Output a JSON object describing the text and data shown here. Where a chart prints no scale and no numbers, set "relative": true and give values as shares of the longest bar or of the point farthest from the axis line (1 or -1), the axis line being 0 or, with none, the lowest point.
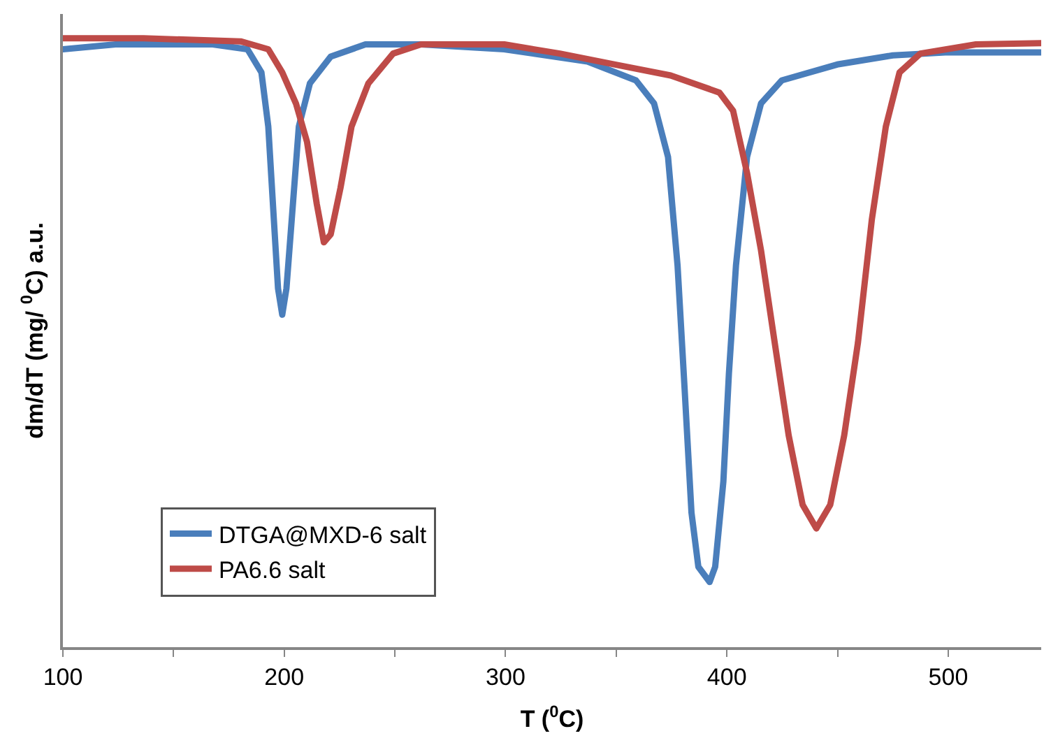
{
  "chart_data": {
    "type": "line",
    "relative": true,
    "xlabel": "T ($^{0}$C)",
    "ylabel": "dm/dT (mg/ $^{0}$C) a.u.",
    "xlim": [
      100,
      542
    ],
    "xticks": [
      100,
      {
        "value": 150,
        "label": null
      },
      200,
      {
        "value": 250,
        "label": null
      },
      300,
      {
        "value": 350,
        "label": null
      },
      400,
      {
        "value": 450,
        "label": null
      },
      500
    ],
    "legend": "bottom left",
    "series": [
      {
        "name": "DTGA@MXD-6 salt",
        "color": "#4a7ebb",
        "x": [
          100,
          123.8,
          167.7,
          183.4,
          189.7,
          192.8,
          195.3,
          197.2,
          199.1,
          201.0,
          203.4,
          206.6,
          211.6,
          221.0,
          236.7,
          261.8,
          299.4,
          337.0,
          358.9,
          367.1,
          373.4,
          377.7,
          380.9,
          384.0,
          387.1,
          392.2,
          394.7,
          398.4,
          400.9,
          404.1,
          409.1,
          415.4,
          424.8,
          449.8,
          474.9,
          500,
          542
        ],
        "values": [
          0.982,
          0.99,
          0.99,
          0.982,
          0.944,
          0.855,
          0.703,
          0.589,
          0.546,
          0.589,
          0.703,
          0.855,
          0.926,
          0.97,
          0.99,
          0.99,
          0.982,
          0.962,
          0.931,
          0.893,
          0.805,
          0.627,
          0.424,
          0.221,
          0.132,
          0.107,
          0.132,
          0.272,
          0.449,
          0.627,
          0.805,
          0.893,
          0.931,
          0.957,
          0.972,
          0.977,
          0.977
        ]
      },
      {
        "name": "PA6.6 salt",
        "color": "#be4b48",
        "x": [
          100,
          136.4,
          180.3,
          192.8,
          199.1,
          205.3,
          210.3,
          214.7,
          217.9,
          221.0,
          225.4,
          230.4,
          238.0,
          249.2,
          261.8,
          299.4,
          324.5,
          349.5,
          374.6,
          396.6,
          402.8,
          409.1,
          415.4,
          421.6,
          427.9,
          434.2,
          440.4,
          446.7,
          453.0,
          459.2,
          465.5,
          471.8,
          478.0,
          487.4,
          512.5,
          542
        ],
        "values": [
          1.0,
          1.0,
          0.995,
          0.982,
          0.944,
          0.893,
          0.83,
          0.728,
          0.665,
          0.678,
          0.754,
          0.855,
          0.926,
          0.975,
          0.99,
          0.99,
          0.975,
          0.957,
          0.939,
          0.911,
          0.881,
          0.779,
          0.652,
          0.5,
          0.348,
          0.234,
          0.195,
          0.234,
          0.348,
          0.5,
          0.703,
          0.855,
          0.944,
          0.975,
          0.99,
          0.992
        ]
      }
    ]
  }
}
